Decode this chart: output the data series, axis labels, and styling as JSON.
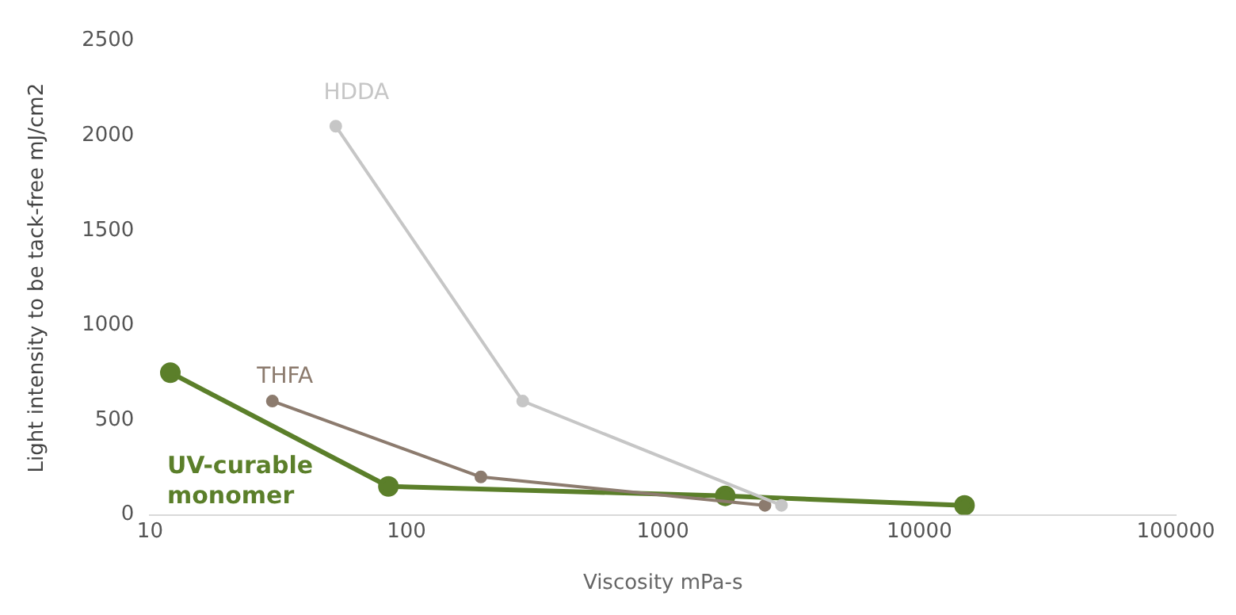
{
  "chart_data": {
    "type": "line",
    "xlabel": "Viscosity mPa-s",
    "ylabel": "Light intensity to be tack-free mJ/cm2",
    "log": "x",
    "xlim": [
      10,
      100000
    ],
    "xticks": [
      10,
      100,
      1000,
      10000,
      100000
    ],
    "ylim": [
      0,
      2500
    ],
    "yticks": [
      0,
      500,
      1000,
      1500,
      2000,
      2500
    ],
    "grid": false,
    "legend": false,
    "marker": "circle",
    "line_style": "solid",
    "series": [
      {
        "name": "HDDA",
        "color": "#c6c6c6",
        "x": [
          53,
          284,
          2900
        ],
        "values": [
          2050,
          600,
          50
        ]
      },
      {
        "name": "THFA",
        "color": "#8c7b6e",
        "x": [
          30,
          195,
          2500
        ],
        "values": [
          600,
          200,
          50
        ]
      },
      {
        "name": "UV-curable monomer",
        "color": "#5b7f2a",
        "x": [
          12,
          85,
          1750,
          15000
        ],
        "values": [
          750,
          150,
          100,
          50
        ]
      }
    ]
  }
}
